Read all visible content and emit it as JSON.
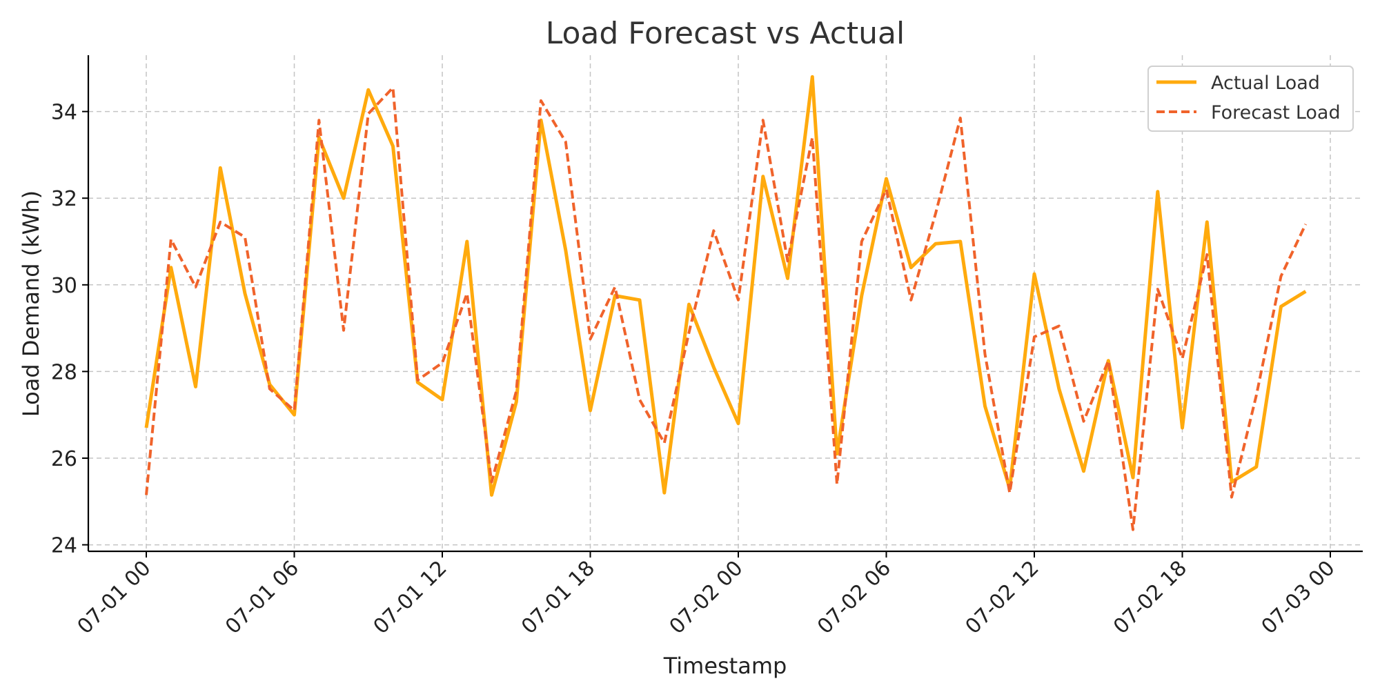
{
  "chart_data": {
    "type": "line",
    "title": "Load Forecast vs Actual",
    "xlabel": "Timestamp",
    "ylabel": "Load Demand (kWh)",
    "x": [
      "07-01 00:00",
      "07-01 01:00",
      "07-01 02:00",
      "07-01 03:00",
      "07-01 04:00",
      "07-01 05:00",
      "07-01 06:00",
      "07-01 07:00",
      "07-01 08:00",
      "07-01 09:00",
      "07-01 10:00",
      "07-01 11:00",
      "07-01 12:00",
      "07-01 13:00",
      "07-01 14:00",
      "07-01 15:00",
      "07-01 16:00",
      "07-01 17:00",
      "07-01 18:00",
      "07-01 19:00",
      "07-01 20:00",
      "07-01 21:00",
      "07-01 22:00",
      "07-01 23:00",
      "07-02 00:00",
      "07-02 01:00",
      "07-02 02:00",
      "07-02 03:00",
      "07-02 04:00",
      "07-02 05:00",
      "07-02 06:00",
      "07-02 07:00",
      "07-02 08:00",
      "07-02 09:00",
      "07-02 10:00",
      "07-02 11:00",
      "07-02 12:00",
      "07-02 13:00",
      "07-02 14:00",
      "07-02 15:00",
      "07-02 16:00",
      "07-02 17:00",
      "07-02 18:00",
      "07-02 19:00",
      "07-02 20:00",
      "07-02 21:00",
      "07-02 22:00",
      "07-02 23:00"
    ],
    "series": [
      {
        "name": "Actual Load",
        "color": "#FFAA0D",
        "style": "solid",
        "values": [
          26.7,
          30.4,
          27.65,
          32.7,
          29.8,
          27.7,
          27.0,
          33.4,
          32.0,
          34.5,
          33.2,
          27.75,
          27.35,
          31.0,
          25.15,
          27.3,
          33.8,
          30.8,
          27.1,
          29.75,
          29.65,
          25.2,
          29.55,
          28.1,
          26.8,
          32.5,
          30.15,
          34.8,
          26.1,
          29.75,
          32.45,
          30.4,
          30.95,
          31.0,
          27.2,
          25.3,
          30.25,
          27.6,
          25.7,
          28.25,
          25.55,
          32.15,
          26.7,
          31.45,
          25.45,
          25.8,
          29.5,
          29.85
        ]
      },
      {
        "name": "Forecast Load",
        "color": "#F0632B",
        "style": "dashed",
        "values": [
          25.15,
          31.05,
          29.95,
          31.45,
          31.1,
          27.6,
          27.1,
          33.8,
          28.95,
          33.95,
          34.55,
          27.8,
          28.2,
          29.8,
          25.45,
          27.55,
          34.25,
          33.3,
          28.75,
          29.95,
          27.35,
          26.35,
          28.9,
          31.25,
          29.65,
          33.8,
          30.55,
          33.4,
          25.4,
          31.0,
          32.2,
          29.65,
          31.65,
          33.85,
          28.4,
          25.2,
          28.8,
          29.05,
          26.85,
          28.25,
          24.35,
          29.9,
          28.3,
          30.7,
          25.1,
          27.45,
          30.2,
          31.4
        ]
      }
    ],
    "x_ticks": [
      "07-01 00",
      "07-01 06",
      "07-01 12",
      "07-01 18",
      "07-02 00",
      "07-02 06",
      "07-02 12",
      "07-02 18",
      "07-03 00"
    ],
    "x_range": [
      "07-01 00:00",
      "07-03 00:00"
    ],
    "y_ticks": [
      24,
      26,
      28,
      30,
      32,
      34
    ],
    "ylim": [
      23.85,
      35.3
    ],
    "grid": true,
    "legend_position": "top-right"
  }
}
